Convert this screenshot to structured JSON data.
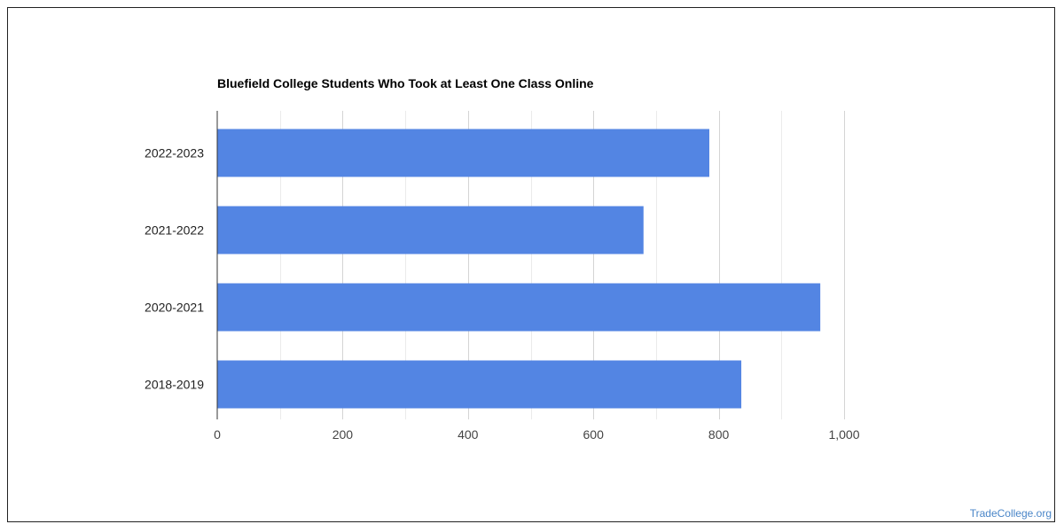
{
  "chart_data": {
    "type": "bar",
    "orientation": "horizontal",
    "title": "Bluefield College Students Who Took at Least One Class Online",
    "categories": [
      "2022-2023",
      "2021-2022",
      "2020-2021",
      "2018-2019"
    ],
    "values": [
      785,
      680,
      962,
      836
    ],
    "xlim": [
      0,
      1000
    ],
    "x_ticks": [
      0,
      200,
      400,
      600,
      800,
      1000
    ],
    "x_tick_labels": [
      "0",
      "200",
      "400",
      "600",
      "800",
      "1,000"
    ],
    "grid": true,
    "legend": "none",
    "bar_color": "#5385e3"
  },
  "watermark": "TradeCollege.org"
}
